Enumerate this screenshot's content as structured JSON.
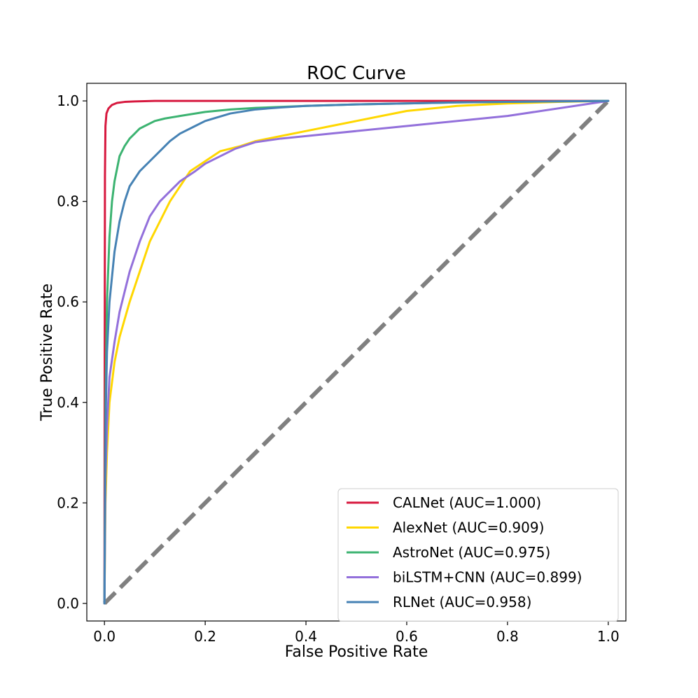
{
  "chart_data": {
    "type": "line",
    "title": "ROC Curve",
    "xlabel": "False Positive Rate",
    "ylabel": "True Positive Rate",
    "xlim": [
      -0.035,
      1.035
    ],
    "ylim": [
      -0.035,
      1.035
    ],
    "xticks": [
      0.0,
      0.2,
      0.4,
      0.6,
      0.8,
      1.0
    ],
    "yticks": [
      0.0,
      0.2,
      0.4,
      0.6,
      0.8,
      1.0
    ],
    "xtick_labels": [
      "0.0",
      "0.2",
      "0.4",
      "0.6",
      "0.8",
      "1.0"
    ],
    "ytick_labels": [
      "0.0",
      "0.2",
      "0.4",
      "0.6",
      "0.8",
      "1.0"
    ],
    "grid": false,
    "legend_position": "lower-right",
    "series": [
      {
        "name": "CALNet (AUC=1.000)",
        "color": "#d7193f",
        "x": [
          0,
          0.0005,
          0.001,
          0.002,
          0.004,
          0.008,
          0.015,
          0.025,
          0.04,
          0.06,
          0.1,
          0.3,
          0.6,
          1.0
        ],
        "y": [
          0,
          0.5,
          0.85,
          0.95,
          0.975,
          0.985,
          0.992,
          0.996,
          0.998,
          0.999,
          1.0,
          1.0,
          1.0,
          1.0
        ]
      },
      {
        "name": "AlexNet (AUC=0.909)",
        "color": "#ffd700",
        "x": [
          0,
          0.002,
          0.005,
          0.01,
          0.02,
          0.03,
          0.05,
          0.07,
          0.09,
          0.11,
          0.13,
          0.15,
          0.17,
          0.2,
          0.23,
          0.27,
          0.3,
          0.35,
          0.4,
          0.45,
          0.5,
          0.55,
          0.6,
          0.7,
          0.8,
          0.9,
          1.0
        ],
        "y": [
          0,
          0.2,
          0.3,
          0.4,
          0.48,
          0.53,
          0.6,
          0.66,
          0.72,
          0.76,
          0.8,
          0.83,
          0.86,
          0.88,
          0.9,
          0.91,
          0.92,
          0.93,
          0.94,
          0.95,
          0.96,
          0.97,
          0.98,
          0.99,
          0.995,
          0.998,
          1.0
        ]
      },
      {
        "name": "AstroNet (AUC=0.975)",
        "color": "#3cb371",
        "x": [
          0,
          0.002,
          0.005,
          0.01,
          0.015,
          0.02,
          0.03,
          0.04,
          0.05,
          0.06,
          0.07,
          0.08,
          0.1,
          0.12,
          0.15,
          0.2,
          0.25,
          0.3,
          0.4,
          0.5,
          0.7,
          1.0
        ],
        "y": [
          0,
          0.4,
          0.6,
          0.73,
          0.8,
          0.84,
          0.89,
          0.91,
          0.925,
          0.935,
          0.945,
          0.95,
          0.96,
          0.965,
          0.97,
          0.978,
          0.983,
          0.986,
          0.99,
          0.993,
          0.997,
          1.0
        ]
      },
      {
        "name": "biLSTM+CNN (AUC=0.899)",
        "color": "#9370db",
        "x": [
          0,
          0.002,
          0.005,
          0.01,
          0.02,
          0.03,
          0.05,
          0.07,
          0.09,
          0.11,
          0.13,
          0.15,
          0.18,
          0.2,
          0.23,
          0.26,
          0.3,
          0.35,
          0.45,
          0.6,
          0.8,
          1.0
        ],
        "y": [
          0,
          0.25,
          0.35,
          0.45,
          0.52,
          0.58,
          0.66,
          0.72,
          0.77,
          0.8,
          0.82,
          0.84,
          0.86,
          0.875,
          0.89,
          0.905,
          0.918,
          0.925,
          0.935,
          0.95,
          0.97,
          1.0
        ]
      },
      {
        "name": "RLNet (AUC=0.958)",
        "color": "#4682b4",
        "x": [
          0,
          0.002,
          0.005,
          0.01,
          0.02,
          0.03,
          0.04,
          0.05,
          0.07,
          0.09,
          0.11,
          0.13,
          0.15,
          0.18,
          0.2,
          0.25,
          0.3,
          0.35,
          0.4,
          0.5,
          0.7,
          1.0
        ],
        "y": [
          0,
          0.35,
          0.5,
          0.6,
          0.7,
          0.76,
          0.8,
          0.83,
          0.86,
          0.88,
          0.9,
          0.92,
          0.935,
          0.95,
          0.96,
          0.975,
          0.983,
          0.987,
          0.99,
          0.993,
          0.997,
          1.0
        ]
      }
    ],
    "reference_line": {
      "color": "#808080",
      "x": [
        0,
        1
      ],
      "y": [
        0,
        1
      ]
    }
  }
}
